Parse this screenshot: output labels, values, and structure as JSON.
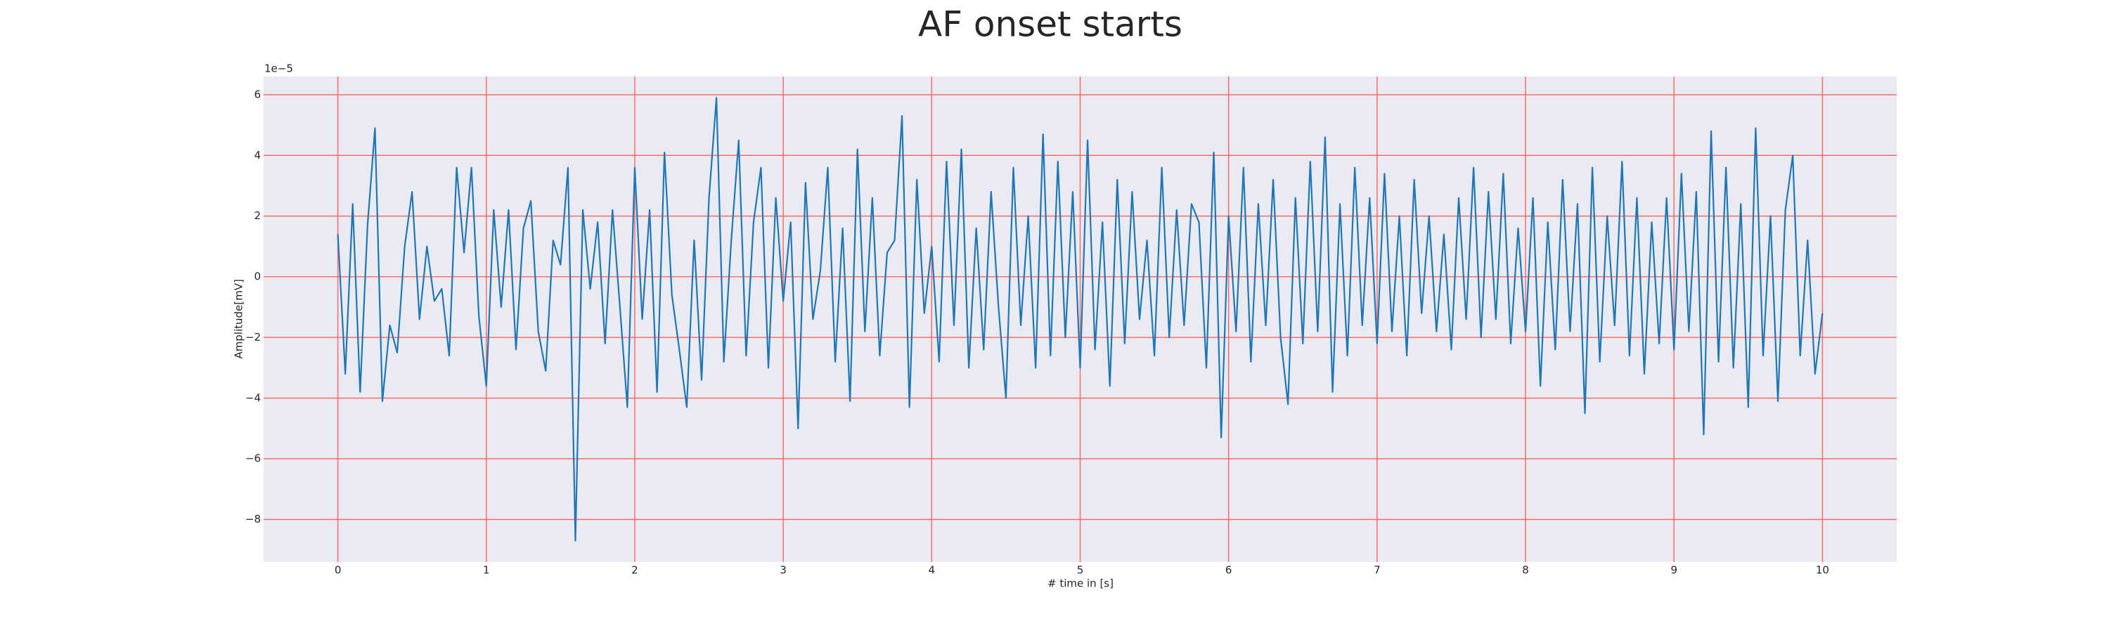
{
  "chart_data": {
    "type": "line",
    "title": "AF onset starts",
    "x_label": "# time in [s]",
    "y_label": "Amplitude[mV]",
    "y_offset_text": "1e−5",
    "color": "#1f77b4",
    "grid": true,
    "grid_color": "#ff6b6b",
    "background": "#eaeaf2",
    "xlim": [
      -0.5,
      10.5
    ],
    "ylim": [
      -9.4,
      6.6
    ],
    "xticks": [
      0,
      1,
      2,
      3,
      4,
      5,
      6,
      7,
      8,
      9,
      10
    ],
    "yticks": [
      {
        "value": -8,
        "label": "−8"
      },
      {
        "value": -6,
        "label": "−6"
      },
      {
        "value": -4,
        "label": "−4"
      },
      {
        "value": -2,
        "label": "−2"
      },
      0,
      2,
      4,
      6
    ],
    "x": [
      0,
      0.05,
      0.1,
      0.15,
      0.2,
      0.25,
      0.3,
      0.35,
      0.4,
      0.45,
      0.5,
      0.55,
      0.6,
      0.65,
      0.7,
      0.75,
      0.8,
      0.85,
      0.9,
      0.95,
      1,
      1.05,
      1.1,
      1.15,
      1.2,
      1.25,
      1.3,
      1.35,
      1.4,
      1.45,
      1.5,
      1.55,
      1.6,
      1.65,
      1.7,
      1.75,
      1.8,
      1.85,
      1.9,
      1.95,
      2,
      2.05,
      2.1,
      2.15,
      2.2,
      2.25,
      2.3,
      2.35,
      2.4,
      2.45,
      2.5,
      2.55,
      2.6,
      2.65,
      2.7,
      2.75,
      2.8,
      2.85,
      2.9,
      2.95,
      3,
      3.05,
      3.1,
      3.15,
      3.2,
      3.25,
      3.3,
      3.35,
      3.4,
      3.45,
      3.5,
      3.55,
      3.6,
      3.65,
      3.7,
      3.75,
      3.8,
      3.85,
      3.9,
      3.95,
      4,
      4.05,
      4.1,
      4.15,
      4.2,
      4.25,
      4.3,
      4.35,
      4.4,
      4.45,
      4.5,
      4.55,
      4.6,
      4.65,
      4.7,
      4.75,
      4.8,
      4.85,
      4.9,
      4.95,
      5,
      5.05,
      5.1,
      5.15,
      5.2,
      5.25,
      5.3,
      5.35,
      5.4,
      5.45,
      5.5,
      5.55,
      5.6,
      5.65,
      5.7,
      5.75,
      5.8,
      5.85,
      5.9,
      5.95,
      6,
      6.05,
      6.1,
      6.15,
      6.2,
      6.25,
      6.3,
      6.35,
      6.4,
      6.45,
      6.5,
      6.55,
      6.6,
      6.65,
      6.7,
      6.75,
      6.8,
      6.85,
      6.9,
      6.95,
      7,
      7.05,
      7.1,
      7.15,
      7.2,
      7.25,
      7.3,
      7.35,
      7.4,
      7.45,
      7.5,
      7.55,
      7.6,
      7.65,
      7.7,
      7.75,
      7.8,
      7.85,
      7.9,
      7.95,
      8,
      8.05,
      8.1,
      8.15,
      8.2,
      8.25,
      8.3,
      8.35,
      8.4,
      8.45,
      8.5,
      8.55,
      8.6,
      8.65,
      8.7,
      8.75,
      8.8,
      8.85,
      8.9,
      8.95,
      9,
      9.05,
      9.1,
      9.15,
      9.2,
      9.25,
      9.3,
      9.35,
      9.4,
      9.45,
      9.5,
      9.55,
      9.6,
      9.65,
      9.7,
      9.75,
      9.8,
      9.85,
      9.9,
      9.95,
      10
    ],
    "values": [
      1.4,
      -3.2,
      2.4,
      -3.8,
      1.7,
      4.9,
      -4.1,
      -1.6,
      -2.5,
      1.0,
      2.8,
      -1.4,
      1.0,
      -0.8,
      -0.4,
      -2.6,
      3.6,
      0.8,
      3.6,
      -1.3,
      -3.6,
      2.2,
      -1.0,
      2.2,
      -2.4,
      1.6,
      2.5,
      -1.8,
      -3.1,
      1.2,
      0.4,
      3.6,
      -8.7,
      2.2,
      -0.4,
      1.8,
      -2.2,
      2.2,
      -1.0,
      -4.3,
      3.6,
      -1.4,
      2.2,
      -3.8,
      4.1,
      -0.6,
      -2.4,
      -4.3,
      1.2,
      -3.4,
      2.6,
      5.9,
      -2.8,
      1.2,
      4.5,
      -2.6,
      1.8,
      3.6,
      -3.0,
      2.6,
      -0.8,
      1.8,
      -5.0,
      3.1,
      -1.4,
      0.2,
      3.6,
      -2.8,
      1.6,
      -4.1,
      4.2,
      -1.8,
      2.6,
      -2.6,
      0.8,
      1.2,
      5.3,
      -4.3,
      3.2,
      -1.2,
      1.0,
      -2.8,
      3.8,
      -1.6,
      4.2,
      -3.0,
      1.6,
      -2.4,
      2.8,
      -1.0,
      -4.0,
      3.6,
      -1.6,
      2.0,
      -3.0,
      4.7,
      -2.6,
      3.8,
      -2.0,
      2.8,
      -3.0,
      4.5,
      -2.4,
      1.8,
      -3.6,
      3.2,
      -2.2,
      2.8,
      -1.4,
      1.2,
      -2.6,
      3.6,
      -2.0,
      2.2,
      -1.6,
      2.4,
      1.8,
      -3.0,
      4.1,
      -5.3,
      2.0,
      -1.8,
      3.6,
      -2.8,
      2.4,
      -1.6,
      3.2,
      -2.0,
      -4.2,
      2.6,
      -2.2,
      3.8,
      -1.8,
      4.6,
      -3.8,
      2.4,
      -2.6,
      3.6,
      -1.6,
      2.6,
      -2.2,
      3.4,
      -1.8,
      2.0,
      -2.6,
      3.2,
      -1.2,
      2.0,
      -1.8,
      1.4,
      -2.4,
      2.6,
      -1.4,
      3.6,
      -2.0,
      2.8,
      -1.4,
      3.4,
      -2.2,
      1.6,
      -1.8,
      2.6,
      -3.6,
      1.8,
      -2.4,
      3.2,
      -1.8,
      2.4,
      -4.5,
      3.6,
      -2.8,
      2.0,
      -1.6,
      3.8,
      -2.6,
      2.6,
      -3.2,
      1.8,
      -2.2,
      2.6,
      -2.4,
      3.4,
      -1.8,
      2.8,
      -5.2,
      4.8,
      -2.8,
      3.6,
      -3.0,
      2.4,
      -4.3,
      4.9,
      -2.6,
      2.0,
      -4.1,
      2.2,
      4.0,
      -2.6,
      1.2,
      -3.2,
      -1.2
    ]
  }
}
